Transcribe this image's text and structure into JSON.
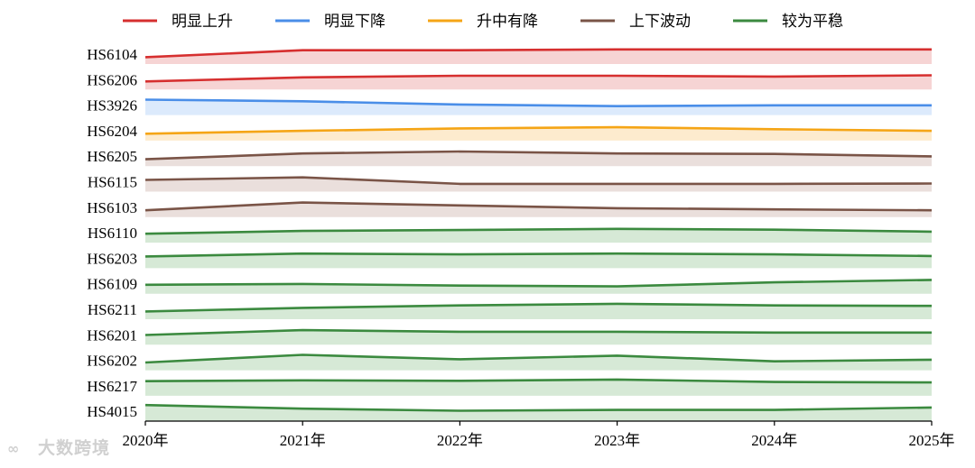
{
  "chart_data": {
    "type": "area",
    "x": [
      "2020年",
      "2021年",
      "2022年",
      "2023年",
      "2024年",
      "2025年"
    ],
    "categories_legend": [
      {
        "key": "up",
        "label": "明显上升",
        "color": "#d62f2f",
        "fill": "#f4cccc"
      },
      {
        "key": "down",
        "label": "明显下降",
        "color": "#4a8ee8",
        "fill": "#d6e6fb"
      },
      {
        "key": "peak",
        "label": "升中有降",
        "color": "#f5a516",
        "fill": "#fde8c6"
      },
      {
        "key": "fluct",
        "label": "上下波动",
        "color": "#7a5447",
        "fill": "#e6d9d6"
      },
      {
        "key": "flat",
        "label": "较为平稳",
        "color": "#3b8a3f",
        "fill": "#cfe5cf"
      }
    ],
    "row_value_range": [
      0,
      1
    ],
    "series": [
      {
        "name": "HS6104",
        "category": "up",
        "values": [
          0.42,
          0.85,
          0.85,
          0.9,
          0.9,
          0.9
        ]
      },
      {
        "name": "HS6206",
        "category": "up",
        "values": [
          0.5,
          0.75,
          0.85,
          0.85,
          0.8,
          0.88
        ]
      },
      {
        "name": "HS3926",
        "category": "down",
        "values": [
          0.95,
          0.85,
          0.65,
          0.55,
          0.6,
          0.6
        ]
      },
      {
        "name": "HS6204",
        "category": "peak",
        "values": [
          0.42,
          0.6,
          0.75,
          0.82,
          0.7,
          0.6
        ]
      },
      {
        "name": "HS6205",
        "category": "fluct",
        "values": [
          0.42,
          0.78,
          0.9,
          0.78,
          0.75,
          0.6
        ]
      },
      {
        "name": "HS6115",
        "category": "fluct",
        "values": [
          0.72,
          0.88,
          0.48,
          0.48,
          0.48,
          0.5
        ]
      },
      {
        "name": "HS6103",
        "category": "fluct",
        "values": [
          0.42,
          0.9,
          0.72,
          0.55,
          0.48,
          0.42
        ]
      },
      {
        "name": "HS6110",
        "category": "flat",
        "values": [
          0.55,
          0.72,
          0.78,
          0.85,
          0.8,
          0.68
        ]
      },
      {
        "name": "HS6203",
        "category": "flat",
        "values": [
          0.72,
          0.9,
          0.85,
          0.9,
          0.85,
          0.75
        ]
      },
      {
        "name": "HS6109",
        "category": "flat",
        "values": [
          0.55,
          0.6,
          0.5,
          0.45,
          0.7,
          0.85
        ]
      },
      {
        "name": "HS6211",
        "category": "flat",
        "values": [
          0.48,
          0.7,
          0.85,
          0.95,
          0.85,
          0.82
        ]
      },
      {
        "name": "HS6201",
        "category": "flat",
        "values": [
          0.6,
          0.9,
          0.8,
          0.8,
          0.75,
          0.75
        ]
      },
      {
        "name": "HS6202",
        "category": "flat",
        "values": [
          0.48,
          0.95,
          0.68,
          0.9,
          0.55,
          0.65
        ]
      },
      {
        "name": "HS6217",
        "category": "flat",
        "values": [
          0.9,
          0.95,
          0.92,
          1.0,
          0.85,
          0.82
        ]
      },
      {
        "name": "HS4015",
        "category": "flat",
        "values": [
          1.0,
          0.78,
          0.65,
          0.7,
          0.7,
          0.85
        ]
      }
    ],
    "grid": false,
    "legend_position": "top"
  },
  "watermark": {
    "icon": "∞",
    "text": "大数跨境"
  }
}
